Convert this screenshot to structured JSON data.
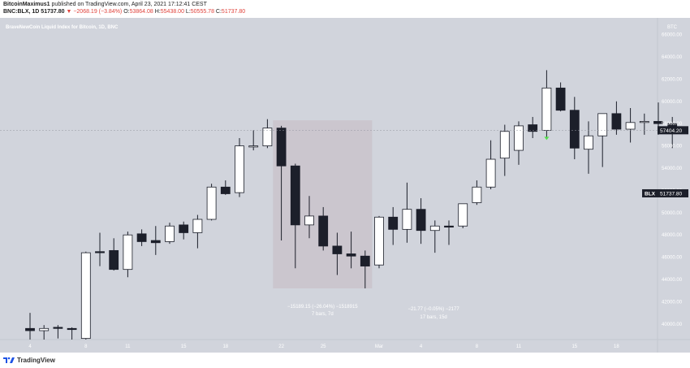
{
  "header": {
    "author": "BitcoinMaximus1",
    "published_text": "published on TradingView.com, April 23, 2021 17:12:41 CEST",
    "symbol": "BNC:BLX, 1D",
    "last": "51737.80",
    "change": "▼ −2068.19 (−3.84%)",
    "o_label": "O:",
    "o_value": "53864.08",
    "h_label": "H:",
    "h_value": "55438.00",
    "l_label": "L:",
    "l_value": "50555.78",
    "c_label": "C:",
    "c_value": "51737.80"
  },
  "footer": {
    "brand": "TradingView"
  },
  "chart_data": {
    "type": "candlestick",
    "title": "BraveNewCoin Liquid Index for Bitcoin, 1D, BNC",
    "currency": "BTC",
    "ylim": [
      38600,
      67500
    ],
    "y_ticks": [
      40000,
      42000,
      44000,
      46000,
      48000,
      50000,
      52000,
      54000,
      56000,
      58000,
      60000,
      62000,
      64000,
      66000
    ],
    "x_ticks": [
      {
        "i": 0,
        "label": "4"
      },
      {
        "i": 4,
        "label": "8"
      },
      {
        "i": 7,
        "label": "11"
      },
      {
        "i": 11,
        "label": "15"
      },
      {
        "i": 14,
        "label": "18"
      },
      {
        "i": 18,
        "label": "22"
      },
      {
        "i": 21,
        "label": "25"
      },
      {
        "i": 25,
        "label": "Mar"
      },
      {
        "i": 28,
        "label": "4"
      },
      {
        "i": 32,
        "label": "8"
      },
      {
        "i": 35,
        "label": "11"
      },
      {
        "i": 39,
        "label": "15"
      },
      {
        "i": 42,
        "label": "18"
      }
    ],
    "candles": [
      {
        "o": 39600,
        "h": 41000,
        "l": 38600,
        "c": 39400
      },
      {
        "o": 39400,
        "h": 39900,
        "l": 38600,
        "c": 39600
      },
      {
        "o": 39700,
        "h": 39900,
        "l": 38700,
        "c": 39600
      },
      {
        "o": 39600,
        "h": 39700,
        "l": 38600,
        "c": 39500
      },
      {
        "o": 38700,
        "h": 46500,
        "l": 38600,
        "c": 46400
      },
      {
        "o": 46500,
        "h": 48200,
        "l": 45200,
        "c": 46400
      },
      {
        "o": 46600,
        "h": 47700,
        "l": 44800,
        "c": 44900
      },
      {
        "o": 44900,
        "h": 48300,
        "l": 44200,
        "c": 48000
      },
      {
        "o": 48100,
        "h": 48500,
        "l": 47000,
        "c": 47400
      },
      {
        "o": 47500,
        "h": 48800,
        "l": 46200,
        "c": 47300
      },
      {
        "o": 47400,
        "h": 49100,
        "l": 47200,
        "c": 48800
      },
      {
        "o": 48900,
        "h": 49200,
        "l": 47600,
        "c": 48200
      },
      {
        "o": 48200,
        "h": 49800,
        "l": 46800,
        "c": 49400
      },
      {
        "o": 49400,
        "h": 52600,
        "l": 49300,
        "c": 52300
      },
      {
        "o": 52300,
        "h": 52900,
        "l": 51600,
        "c": 51700
      },
      {
        "o": 51800,
        "h": 56700,
        "l": 51400,
        "c": 56000
      },
      {
        "o": 55900,
        "h": 57400,
        "l": 55600,
        "c": 56000
      },
      {
        "o": 56000,
        "h": 58400,
        "l": 55800,
        "c": 57600
      },
      {
        "o": 57600,
        "h": 57800,
        "l": 47500,
        "c": 54200
      },
      {
        "o": 54200,
        "h": 54400,
        "l": 45000,
        "c": 48900
      },
      {
        "o": 48900,
        "h": 51500,
        "l": 47700,
        "c": 49700
      },
      {
        "o": 49700,
        "h": 50500,
        "l": 46600,
        "c": 47000
      },
      {
        "o": 47000,
        "h": 48200,
        "l": 44400,
        "c": 46300
      },
      {
        "o": 46300,
        "h": 48300,
        "l": 45000,
        "c": 46100
      },
      {
        "o": 46100,
        "h": 46600,
        "l": 43200,
        "c": 45200
      },
      {
        "o": 45300,
        "h": 49700,
        "l": 45000,
        "c": 49600
      },
      {
        "o": 49600,
        "h": 50500,
        "l": 47100,
        "c": 48500
      },
      {
        "o": 48500,
        "h": 52700,
        "l": 47300,
        "c": 50300
      },
      {
        "o": 50300,
        "h": 51300,
        "l": 47200,
        "c": 48400
      },
      {
        "o": 48400,
        "h": 49300,
        "l": 46400,
        "c": 48800
      },
      {
        "o": 48800,
        "h": 49300,
        "l": 47100,
        "c": 48700
      },
      {
        "o": 48800,
        "h": 50800,
        "l": 48600,
        "c": 50800
      },
      {
        "o": 50900,
        "h": 52900,
        "l": 50700,
        "c": 52300
      },
      {
        "o": 52300,
        "h": 56500,
        "l": 52100,
        "c": 54800
      },
      {
        "o": 54900,
        "h": 57900,
        "l": 53300,
        "c": 57300
      },
      {
        "o": 55600,
        "h": 58200,
        "l": 54300,
        "c": 57800
      },
      {
        "o": 57900,
        "h": 58600,
        "l": 56700,
        "c": 57300
      },
      {
        "o": 57400,
        "h": 62800,
        "l": 56600,
        "c": 61200
      },
      {
        "o": 61200,
        "h": 61700,
        "l": 59100,
        "c": 59200
      },
      {
        "o": 59200,
        "h": 60400,
        "l": 54800,
        "c": 55800
      },
      {
        "o": 55700,
        "h": 58200,
        "l": 53500,
        "c": 56900
      },
      {
        "o": 56900,
        "h": 58800,
        "l": 54100,
        "c": 58900
      },
      {
        "o": 58900,
        "h": 60000,
        "l": 57000,
        "c": 57500
      },
      {
        "o": 57500,
        "h": 59400,
        "l": 56300,
        "c": 58100
      },
      {
        "o": 58100,
        "h": 58900,
        "l": 57000,
        "c": 58200
      },
      {
        "o": 58200,
        "h": 59900,
        "l": 57000,
        "c": 58000
      },
      {
        "o": 58000,
        "h": 58600,
        "l": 55800,
        "c": 57400
      }
    ],
    "range_box": {
      "i_start": 17.4,
      "i_end": 24.5,
      "price_top": 58300,
      "price_bottom": 43200,
      "text1": "−15189.15 (−26.04%) −1518915",
      "text2": "7 bars, 7d"
    },
    "annotation": {
      "text1": "−21.77 (−0.05%) −2177",
      "text2": "17 bars, 15d"
    },
    "marker_index": 37,
    "price_labels": {
      "current": "57404.20",
      "current_value": 57404.2,
      "blx_name": "BLX",
      "blx_value": "51737.80",
      "blx_level": 51737.8
    },
    "colors": {
      "background": "#d1d4dc",
      "up_fill": "#ffffff",
      "down_fill": "#1c1f2a",
      "wick": "#1c1f2a",
      "range_box": "#cbc6ce",
      "marker": "#53e04b",
      "label_bg": "#1c1f2a",
      "axis_text": "#ffffff"
    }
  }
}
